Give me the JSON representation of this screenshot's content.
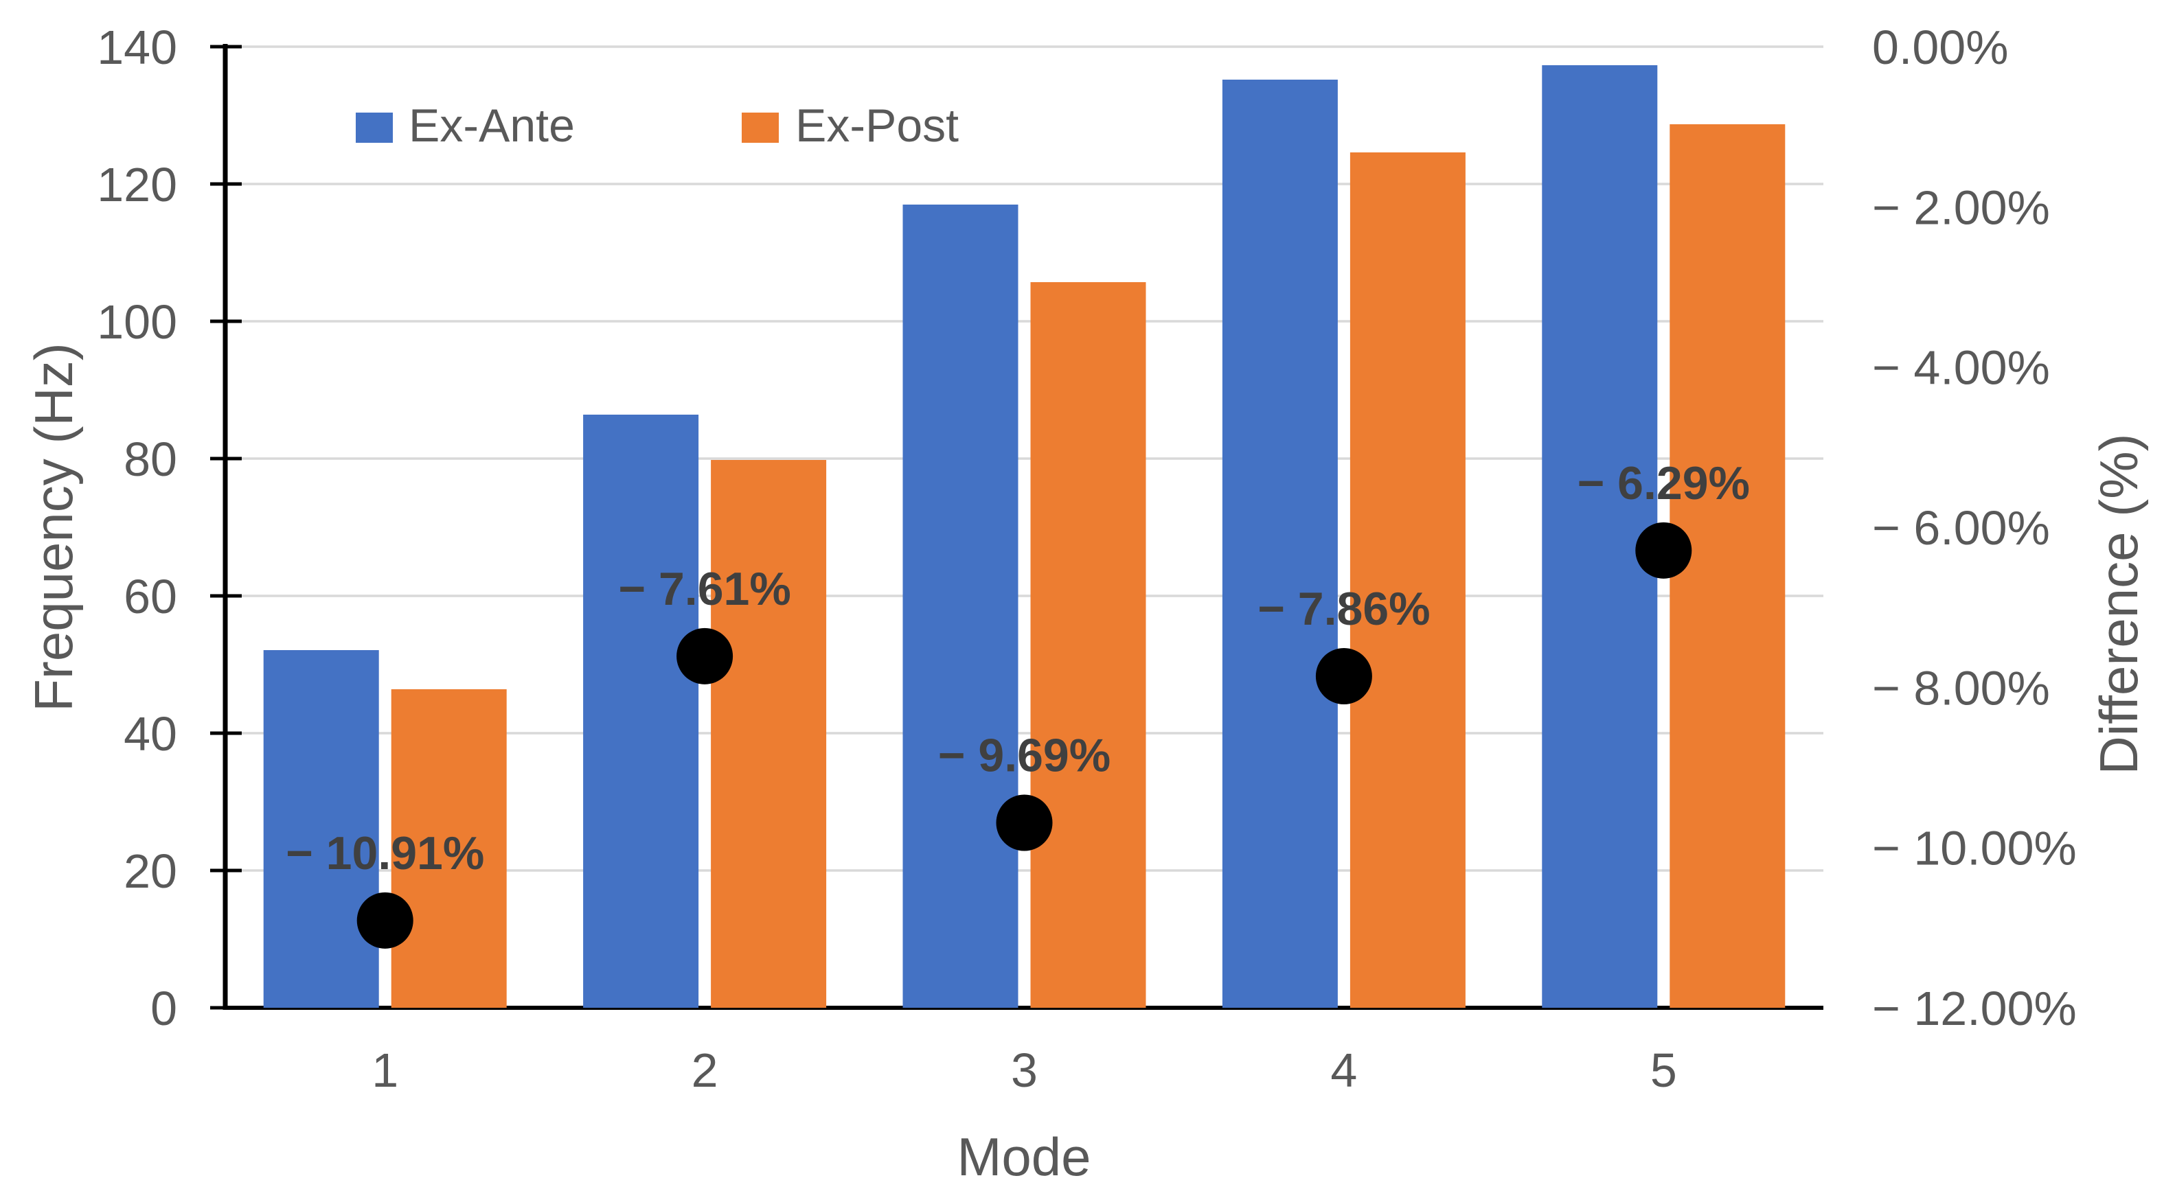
{
  "chart_data": {
    "type": "bar",
    "subtype": "combo-bar-scatter",
    "title": "",
    "categories": [
      "1",
      "2",
      "3",
      "4",
      "5"
    ],
    "series": [
      {
        "name": "Ex-Ante",
        "type": "bar",
        "axis": "left",
        "color": "#4472C4",
        "values": [
          52.1,
          86.4,
          117.0,
          135.2,
          137.3
        ]
      },
      {
        "name": "Ex-Post",
        "type": "bar",
        "axis": "left",
        "color": "#ED7D31",
        "values": [
          46.4,
          79.8,
          105.7,
          124.6,
          128.7
        ]
      },
      {
        "name": "Difference",
        "type": "scatter",
        "axis": "right",
        "color": "#000000",
        "in_legend": false,
        "values": [
          -10.91,
          -7.61,
          -9.69,
          -7.86,
          -6.29
        ],
        "point_labels": [
          "− 10.91%",
          "− 7.61%",
          "− 9.69%",
          "− 7.86%",
          "− 6.29%"
        ]
      }
    ],
    "xlabel": "Mode",
    "ylabel_left": "Frequency (Hz)",
    "ylabel_right": "Difference (%)",
    "ylim_left": [
      0,
      140
    ],
    "ylim_right": [
      -12,
      0
    ],
    "left_tick_labels": [
      "0",
      "20",
      "40",
      "60",
      "80",
      "100",
      "120",
      "140"
    ],
    "right_tick_labels": [
      "0.00%",
      "− 2.00%",
      "− 4.00%",
      "− 6.00%",
      "− 8.00%",
      "− 10.00%",
      "− 12.00%"
    ],
    "grid": true,
    "legend_position": "top-inside",
    "legend_entries": [
      "Ex-Ante",
      "Ex-Post"
    ],
    "colors": {
      "grid": "#D9D9D9",
      "axis_line": "#000000",
      "tick_text": "#595959",
      "data_label_text": "#404040"
    }
  }
}
